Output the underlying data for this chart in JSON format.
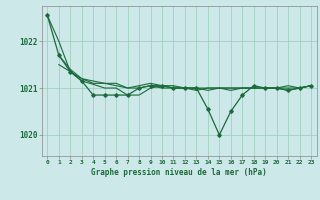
{
  "background_color": "#cce8e8",
  "grid_color": "#99ccbb",
  "line_color_dark": "#1a6b3a",
  "xlabel": "Graphe pression niveau de la mer (hPa)",
  "xlim": [
    -0.5,
    23.5
  ],
  "ylim": [
    1019.55,
    1022.75
  ],
  "yticks": [
    1020,
    1021,
    1022
  ],
  "xticks": [
    0,
    1,
    2,
    3,
    4,
    5,
    6,
    7,
    8,
    9,
    10,
    11,
    12,
    13,
    14,
    15,
    16,
    17,
    18,
    19,
    20,
    21,
    22,
    23
  ],
  "series": [
    {
      "x": [
        0,
        1,
        2,
        3,
        4,
        5,
        6,
        7,
        8,
        9,
        10,
        11,
        12,
        13,
        14,
        15,
        16,
        17,
        18,
        19,
        20,
        21,
        22,
        23
      ],
      "y": [
        1022.55,
        1022.0,
        1021.35,
        1021.2,
        1021.15,
        1021.1,
        1021.05,
        1021.0,
        1021.05,
        1021.1,
        1021.05,
        1021.05,
        1021.0,
        1021.0,
        1021.0,
        1021.0,
        1021.0,
        1021.0,
        1021.0,
        1021.0,
        1021.0,
        1021.05,
        1021.0,
        1021.05
      ],
      "color": "#1a6b3a",
      "lw": 0.8,
      "marker": null,
      "zorder": 2
    },
    {
      "x": [
        1,
        2,
        3,
        4,
        5,
        6,
        7,
        8,
        9,
        10,
        11,
        12,
        13,
        14,
        15,
        16,
        17,
        18,
        19,
        20,
        21,
        22,
        23
      ],
      "y": [
        1021.7,
        1021.4,
        1021.2,
        1021.1,
        1021.1,
        1021.1,
        1021.0,
        1021.0,
        1021.05,
        1021.0,
        1021.0,
        1021.0,
        1020.95,
        1021.0,
        1021.0,
        1021.0,
        1021.0,
        1021.0,
        1021.0,
        1021.0,
        1021.0,
        1021.0,
        1021.05
      ],
      "color": "#1a6b3a",
      "lw": 0.8,
      "marker": null,
      "zorder": 2
    },
    {
      "x": [
        1,
        2,
        3,
        4,
        5,
        6,
        7,
        8,
        9,
        10,
        11,
        12,
        13,
        14,
        15,
        16,
        17,
        18,
        19,
        20,
        21,
        22,
        23
      ],
      "y": [
        1021.5,
        1021.35,
        1021.15,
        1021.08,
        1021.0,
        1021.0,
        1020.85,
        1020.85,
        1021.0,
        1021.05,
        1021.0,
        1021.0,
        1021.0,
        1020.95,
        1021.0,
        1020.95,
        1021.0,
        1021.0,
        1021.0,
        1021.0,
        1020.95,
        1021.0,
        1021.05
      ],
      "color": "#1a6b3a",
      "lw": 0.8,
      "marker": null,
      "zorder": 2
    },
    {
      "x": [
        0,
        1,
        2,
        3,
        4,
        5,
        6,
        7,
        8,
        9,
        10,
        11,
        12,
        13,
        14,
        15,
        16,
        17,
        18,
        19,
        20,
        21,
        22,
        23
      ],
      "y": [
        1022.55,
        1021.7,
        1021.35,
        1021.15,
        1020.85,
        1020.85,
        1020.85,
        1020.85,
        1021.0,
        1021.05,
        1021.05,
        1021.0,
        1021.0,
        1021.0,
        1020.55,
        1020.0,
        1020.5,
        1020.85,
        1021.05,
        1021.0,
        1021.0,
        1020.95,
        1021.0,
        1021.05
      ],
      "color": "#1a6b3a",
      "lw": 0.9,
      "marker": "D",
      "markersize": 1.8,
      "zorder": 3
    }
  ]
}
